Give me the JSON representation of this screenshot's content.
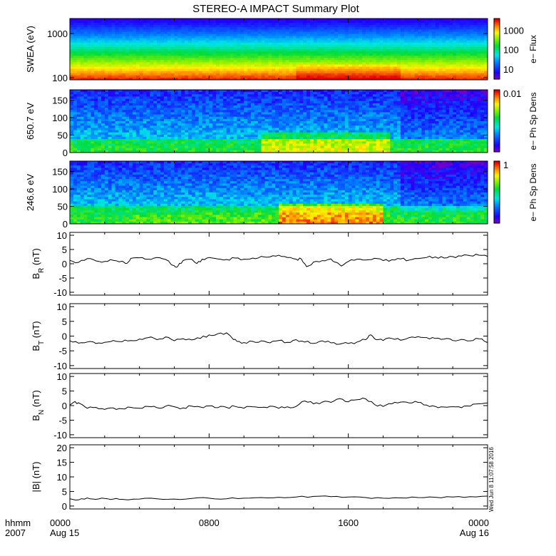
{
  "chart_data": {
    "title": "STEREO-A IMPACT Summary Plot",
    "type": "multi-panel time series",
    "time_axis": {
      "row1_label": "hhmm",
      "row2_label": "2007",
      "range_hours": [
        0,
        24
      ],
      "ticks": [
        {
          "hour": 0,
          "time": "0000",
          "date": "Aug 15"
        },
        {
          "hour": 8,
          "time": "0800",
          "date": ""
        },
        {
          "hour": 16,
          "time": "1600",
          "date": ""
        },
        {
          "hour": 24,
          "time": "0000",
          "date": "Aug 16"
        }
      ]
    },
    "timestamp": "Wed Jun 8 11:07:58 2016",
    "spectrograms": [
      {
        "id": "swea",
        "type": "heatmap",
        "ylabel": "SWEA (eV)",
        "yscale": "log",
        "ylim": [
          90,
          2200
        ],
        "yticks": [
          100,
          1000
        ],
        "ytick_labels": [
          "100",
          "1000"
        ],
        "colorbar": {
          "label": "e− Flux",
          "scale": "log",
          "ticks": [
            10,
            100,
            1000
          ],
          "tick_labels": [
            "10",
            "100",
            "1000"
          ],
          "range": [
            3,
            4000
          ]
        },
        "description_bands": [
          {
            "energy_eV": 100,
            "level": 0.95
          },
          {
            "energy_eV": 300,
            "level": 0.65
          },
          {
            "energy_eV": 600,
            "level": 0.45
          },
          {
            "energy_eV": 1200,
            "level": 0.25
          },
          {
            "energy_eV": 2000,
            "level": 0.05
          }
        ]
      },
      {
        "id": "pad650",
        "type": "heatmap",
        "ylabel": "650.7 eV",
        "ylim": [
          0,
          180
        ],
        "yticks": [
          0,
          50,
          100,
          150
        ],
        "ytick_labels": [
          "0",
          "50",
          "100",
          "150"
        ],
        "colorbar": {
          "label": "e− Ph Sp Dens",
          "ticks_top": "0.01"
        }
      },
      {
        "id": "pad246",
        "type": "heatmap",
        "ylabel": "246.6 eV",
        "ylim": [
          0,
          180
        ],
        "yticks": [
          0,
          50,
          100,
          150
        ],
        "ytick_labels": [
          "0",
          "50",
          "100",
          "150"
        ],
        "colorbar": {
          "label": "e− Ph Sp Dens",
          "ticks_top": "1"
        }
      }
    ],
    "mag_panels": [
      {
        "id": "br",
        "type": "line",
        "ylabel_main": "B",
        "ylabel_sub": "R",
        "ylabel_unit": " (nT)",
        "ylim": [
          -11,
          11
        ],
        "yticks": [
          -10,
          -5,
          0,
          5,
          10
        ],
        "x_hours": [
          0,
          0.5,
          1,
          1.5,
          2,
          2.5,
          3,
          3.3,
          3.5,
          4,
          4.5,
          5,
          5.5,
          6,
          6.2,
          6.5,
          7,
          7.3,
          7.6,
          8,
          8.5,
          9,
          9.5,
          10,
          10.5,
          11,
          11.5,
          12,
          12.5,
          13,
          13.3,
          13.6,
          14,
          14.5,
          15,
          15.3,
          15.6,
          16,
          16.5,
          17,
          17.5,
          18,
          18.5,
          19,
          19.5,
          20,
          20.5,
          21,
          21.5,
          22,
          22.5,
          23,
          23.5,
          24
        ],
        "values": [
          1.2,
          0.5,
          1.8,
          1.0,
          0.8,
          1.2,
          0.9,
          0.2,
          1.9,
          2.1,
          1.6,
          2.2,
          1.5,
          -0.7,
          -0.9,
          1.1,
          1.6,
          0.1,
          1.6,
          2.2,
          1.7,
          1.5,
          2.0,
          1.6,
          2.0,
          2.6,
          2.4,
          3.0,
          2.2,
          1.6,
          1.7,
          -1.0,
          0.6,
          1.1,
          1.7,
          0.5,
          -0.8,
          0.8,
          1.6,
          1.3,
          1.9,
          1.1,
          1.4,
          1.7,
          1.3,
          1.8,
          2.2,
          2.4,
          2.0,
          2.5,
          2.7,
          2.8,
          3.0,
          2.6
        ]
      },
      {
        "id": "bt",
        "type": "line",
        "ylabel_main": "B",
        "ylabel_sub": "T",
        "ylabel_unit": " (nT)",
        "ylim": [
          -11,
          11
        ],
        "yticks": [
          -10,
          -5,
          0,
          5,
          10
        ],
        "x_hours": [
          0,
          0.5,
          1,
          1.5,
          2,
          2.5,
          3,
          3.5,
          4,
          4.5,
          5,
          5.5,
          6,
          6.5,
          7,
          7.5,
          8,
          8.5,
          9,
          9.3,
          9.6,
          10,
          10.5,
          11,
          11.5,
          12,
          12.5,
          13,
          13.5,
          14,
          14.5,
          15,
          15.5,
          16,
          16.5,
          17,
          17.3,
          17.6,
          18,
          18.5,
          19,
          19.5,
          20,
          20.5,
          21,
          21.5,
          22,
          22.5,
          23,
          23.5,
          24
        ],
        "values": [
          -1.6,
          -2.4,
          -2.0,
          -2.5,
          -2.1,
          -1.5,
          -1.9,
          -1.5,
          -1.0,
          -0.5,
          -1.2,
          -0.3,
          -1.6,
          -0.9,
          -1.3,
          -0.8,
          0.4,
          0.8,
          1.1,
          -0.5,
          -1.8,
          -2.2,
          -1.8,
          -1.6,
          -2.3,
          -1.5,
          -2.1,
          -1.2,
          -2.0,
          -2.5,
          -1.6,
          -2.3,
          -2.7,
          -2.5,
          -2.0,
          -1.2,
          0.4,
          -1.2,
          -1.5,
          -0.8,
          -1.4,
          -0.5,
          -0.2,
          -0.5,
          -0.8,
          -1.0,
          -1.5,
          -1.1,
          -1.6,
          -0.9,
          -2.2
        ]
      },
      {
        "id": "bn",
        "type": "line",
        "ylabel_main": "B",
        "ylabel_sub": "N",
        "ylabel_unit": " (nT)",
        "ylim": [
          -11,
          11
        ],
        "yticks": [
          -10,
          -5,
          0,
          5,
          10
        ],
        "x_hours": [
          0,
          0.3,
          0.6,
          1,
          1.5,
          2,
          2.5,
          3,
          3.5,
          4,
          4.5,
          5,
          5.5,
          6,
          6.5,
          7,
          7.5,
          8,
          8.5,
          9,
          9.5,
          10,
          10.5,
          11,
          11.5,
          12,
          12.5,
          13,
          13.5,
          14,
          14.5,
          15,
          15.5,
          16,
          16.5,
          17,
          17.5,
          18,
          18.5,
          19,
          19.5,
          20,
          20.5,
          21,
          21.5,
          22,
          22.5,
          23,
          23.5,
          24
        ],
        "values": [
          0.2,
          1.4,
          0.6,
          -0.9,
          -0.6,
          -1.3,
          -0.8,
          -1.1,
          -0.6,
          -0.9,
          -0.3,
          -0.7,
          -0.2,
          -0.4,
          -0.8,
          -0.2,
          -0.5,
          -0.1,
          -0.7,
          -0.6,
          -0.3,
          -0.9,
          -0.4,
          -0.6,
          -0.2,
          -0.9,
          -0.4,
          -0.3,
          1.6,
          0.6,
          1.2,
          1.1,
          2.4,
          1.3,
          2.0,
          2.3,
          0.4,
          -0.3,
          0.6,
          1.2,
          0.9,
          1.1,
          0.2,
          -0.3,
          -0.5,
          -0.4,
          -0.7,
          -0.2,
          0.6,
          0.9
        ]
      },
      {
        "id": "bmag",
        "type": "line",
        "ylabel_main": "|B|",
        "ylabel_sub": "",
        "ylabel_unit": " (nT)",
        "ylim": [
          -1,
          21
        ],
        "yticks": [
          0,
          5,
          10,
          15,
          20
        ],
        "x_hours": [
          0,
          0.5,
          1,
          1.5,
          2,
          2.5,
          3,
          4,
          5,
          6,
          7,
          8,
          9,
          10,
          11,
          12,
          13,
          14,
          15,
          16,
          17,
          18,
          19,
          20,
          21,
          22,
          23,
          24
        ],
        "values": [
          2.5,
          2.1,
          2.8,
          2.3,
          2.6,
          2.4,
          2.3,
          2.4,
          2.5,
          2.4,
          2.6,
          2.7,
          2.5,
          2.7,
          2.9,
          3.0,
          3.1,
          3.3,
          3.2,
          3.1,
          2.9,
          2.7,
          2.8,
          2.9,
          3.0,
          3.1,
          3.2,
          3.4
        ]
      }
    ]
  }
}
